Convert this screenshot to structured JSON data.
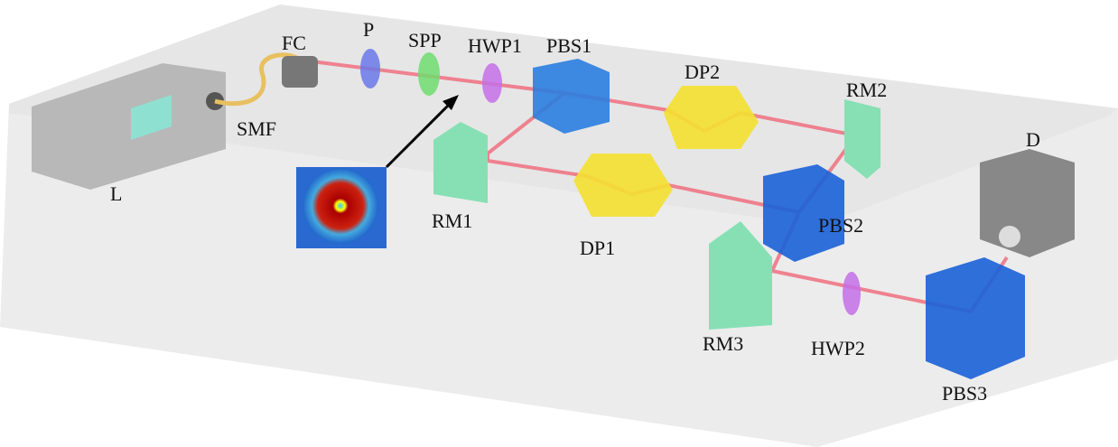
{
  "nodes": [
    {
      "label": "L"
    },
    {
      "label": "SMF"
    },
    {
      "label": "FC"
    },
    {
      "label": "P"
    },
    {
      "label": "SPP"
    },
    {
      "label": "HWP1"
    },
    {
      "label": "PBS1"
    },
    {
      "label": "DP2"
    },
    {
      "label": "RM2"
    },
    {
      "label": "D"
    },
    {
      "label": "RM1"
    },
    {
      "label": "DP1"
    },
    {
      "label": "PBS2"
    },
    {
      "label": "RM3"
    },
    {
      "label": "HWP2"
    },
    {
      "label": "PBS3"
    }
  ]
}
